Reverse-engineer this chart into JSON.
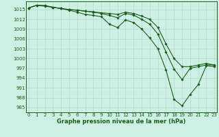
{
  "title": "Graphe pression niveau de la mer (hPa)",
  "background_color": "#cef0e4",
  "grid_color": "#b0ddd0",
  "line_color": "#1a5e1a",
  "ylim": [
    983.5,
    1017.5
  ],
  "yticks": [
    985,
    988,
    991,
    994,
    997,
    1000,
    1003,
    1006,
    1009,
    1012,
    1015
  ],
  "xlim": [
    -0.3,
    23.3
  ],
  "xticks": [
    0,
    1,
    2,
    3,
    4,
    5,
    6,
    7,
    8,
    9,
    10,
    11,
    12,
    13,
    14,
    15,
    16,
    17,
    18,
    19,
    20,
    21,
    22,
    23
  ],
  "series": [
    [
      1015.5,
      1016.3,
      1016.2,
      1015.7,
      1015.3,
      1014.8,
      1014.2,
      1013.5,
      1013.2,
      1012.8,
      1010.5,
      1009.5,
      1011.8,
      1011.0,
      1009.0,
      1006.3,
      1003.0,
      996.5,
      987.5,
      985.5,
      989.0,
      992.0,
      997.8,
      997.5
    ],
    [
      1015.5,
      1016.3,
      1016.2,
      1015.7,
      1015.3,
      1015.0,
      1014.8,
      1014.5,
      1014.2,
      1013.8,
      1013.2,
      1012.5,
      1013.8,
      1013.3,
      1012.0,
      1010.5,
      1007.5,
      1002.0,
      996.8,
      993.5,
      997.0,
      997.5,
      998.0,
      998.0
    ],
    [
      1015.5,
      1016.3,
      1016.0,
      1015.7,
      1015.3,
      1015.0,
      1014.8,
      1014.5,
      1014.3,
      1014.0,
      1013.8,
      1013.5,
      1014.2,
      1013.8,
      1013.0,
      1012.0,
      1009.5,
      1004.5,
      1000.0,
      997.5,
      997.5,
      998.0,
      998.5,
      998.0
    ]
  ]
}
